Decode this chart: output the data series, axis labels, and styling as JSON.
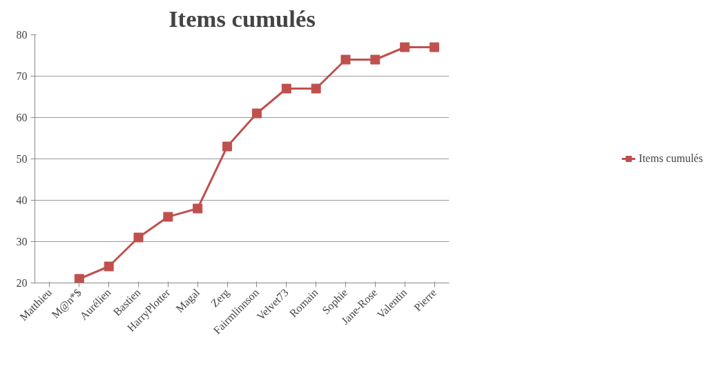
{
  "chart_data": {
    "type": "line",
    "title": "Items cumulés",
    "categories": [
      "Matthieu",
      "M@n*$",
      "Aurélien",
      "Bastien",
      "HarryPlotter",
      "Magal",
      "Zerg",
      "Fairmlinnson",
      "Velvet73",
      "Romain",
      "Sophie",
      "Jane-Rose",
      "Valentin",
      "Pierre"
    ],
    "series": [
      {
        "name": "Items cumulés",
        "color": "#c0504d",
        "values": [
          null,
          21,
          24,
          31,
          36,
          38,
          53,
          61,
          67,
          67,
          74,
          74,
          77,
          77
        ]
      }
    ],
    "ylim": [
      20,
      80
    ],
    "yticks": [
      20,
      30,
      40,
      50,
      60,
      70,
      80
    ],
    "grid": "y",
    "legend": "right",
    "marker": "square",
    "line_style": "solid"
  }
}
